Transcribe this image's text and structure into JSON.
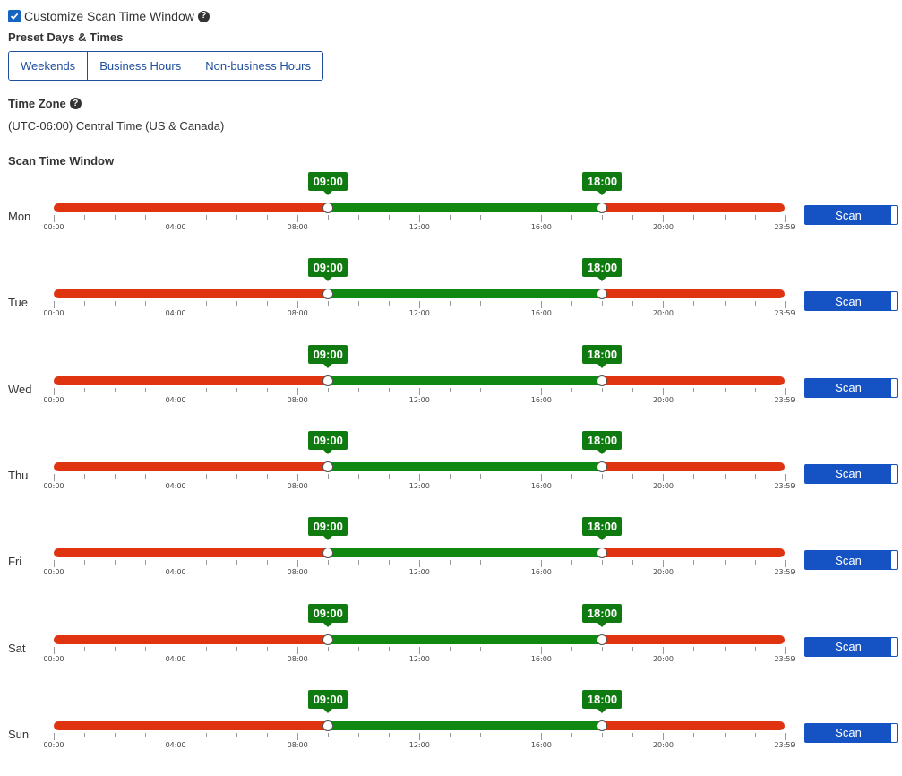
{
  "customize": {
    "label": "Customize Scan Time Window",
    "checked": true
  },
  "presets": {
    "title": "Preset Days & Times",
    "buttons": [
      "Weekends",
      "Business Hours",
      "Non-business Hours"
    ]
  },
  "timezone": {
    "title": "Time Zone",
    "value": "(UTC-06:00) Central Time (US & Canada)"
  },
  "scan_window": {
    "title": "Scan Time Window",
    "tick_labels": [
      "00:00",
      "04:00",
      "08:00",
      "12:00",
      "16:00",
      "20:00",
      "23:59"
    ],
    "days": [
      {
        "label": "Mon",
        "start": "09:00",
        "end": "18:00",
        "toggle": "Scan"
      },
      {
        "label": "Tue",
        "start": "09:00",
        "end": "18:00",
        "toggle": "Scan"
      },
      {
        "label": "Wed",
        "start": "09:00",
        "end": "18:00",
        "toggle": "Scan"
      },
      {
        "label": "Thu",
        "start": "09:00",
        "end": "18:00",
        "toggle": "Scan"
      },
      {
        "label": "Fri",
        "start": "09:00",
        "end": "18:00",
        "toggle": "Scan"
      },
      {
        "label": "Sat",
        "start": "09:00",
        "end": "18:00",
        "toggle": "Scan"
      },
      {
        "label": "Sun",
        "start": "09:00",
        "end": "18:00",
        "toggle": "Scan"
      }
    ]
  },
  "colors": {
    "inactive": "#e0330f",
    "active": "#118811",
    "accent": "#1552c4"
  },
  "icons": {
    "help": "question-circle-icon",
    "check": "checkmark-icon"
  }
}
